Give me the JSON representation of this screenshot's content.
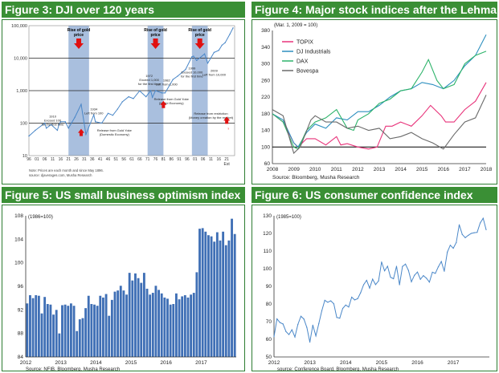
{
  "colors": {
    "header_bg": "#3a8f35",
    "header_text": "#ffffff",
    "line_blue": "#4a87c8",
    "shade": "#a9bfde",
    "arrow_red": "#e01010"
  },
  "panels": {
    "fig3": {
      "title": "Figure 3: DJI over 120 years"
    },
    "fig4": {
      "title": "Figure 4: Major stock indices after the Lehman shock"
    },
    "fig5": {
      "title": "Figure 5: US small business optimism index"
    },
    "fig6": {
      "title": "Figure 6: US consumer confidence index"
    }
  },
  "chart_data": [
    {
      "id": "fig3",
      "type": "line",
      "title": "Figure 3: DJI over 120 years",
      "y_scale": "log",
      "ylim": [
        10,
        100000
      ],
      "y_ticks": [
        "10",
        "100",
        "1,000",
        "10,000",
        "100,000"
      ],
      "x_ticks": [
        "96",
        "01",
        "06",
        "11",
        "16",
        "21",
        "26",
        "31",
        "36",
        "41",
        "46",
        "51",
        "56",
        "61",
        "66",
        "71",
        "76",
        "81",
        "86",
        "91",
        "96",
        "01",
        "06",
        "11",
        "16",
        "21"
      ],
      "x_tick_years": [
        1896,
        1901,
        1906,
        1911,
        1916,
        1921,
        1926,
        1931,
        1936,
        1941,
        1946,
        1951,
        1956,
        1961,
        1966,
        1971,
        1976,
        1981,
        1986,
        1991,
        1996,
        2001,
        2006,
        2011,
        2016,
        2021
      ],
      "x_end_label": "Est",
      "xlim": [
        1896,
        2026
      ],
      "series": [
        {
          "x": [
            1896,
            1900,
            1906,
            1907,
            1910,
            1914,
            1915,
            1916,
            1919,
            1921,
            1925,
            1929,
            1932,
            1937,
            1938,
            1942,
            1946,
            1949,
            1952,
            1955,
            1959,
            1962,
            1966,
            1970,
            1973,
            1974,
            1976,
            1980,
            1982,
            1985,
            1987,
            1990,
            1995,
            1999,
            2000,
            2002,
            2007,
            2009,
            2013,
            2016,
            2018,
            2020,
            2023,
            2025
          ],
          "y": [
            40,
            60,
            100,
            70,
            90,
            60,
            90,
            110,
            110,
            70,
            150,
            380,
            45,
            180,
            110,
            100,
            200,
            175,
            270,
            450,
            650,
            570,
            990,
            650,
            1000,
            620,
            1000,
            850,
            850,
            1500,
            2200,
            2800,
            4500,
            11000,
            11500,
            8500,
            13500,
            7000,
            15000,
            17500,
            25000,
            30000,
            55000,
            85000
          ]
        }
      ],
      "shaded_periods": [
        [
          1921,
          1934
        ],
        [
          1971,
          1981
        ],
        [
          1999,
          2009
        ]
      ],
      "shaded_label": "Rise of gold price",
      "annotations": [
        "1910\nExceed 100\nfor the first time",
        "1934\nLeft from 100",
        "1972\nExceed 1,000\nfor the first time",
        "1982\nLeft from 1,000",
        "1999\nExceed 10,000\nfor the first time",
        "2009\nLeft from 10,000",
        "Release from Gold Yoke\n(Domestic Economy)",
        "Release from Gold Yoke\n(World Economy)",
        "Release from restriction\n(Money creation by the market)",
        "?"
      ],
      "notes": [
        "Note: Prices are each month and since May 1896.",
        "source: djaverages.com, Musha Research"
      ]
    },
    {
      "id": "fig4",
      "type": "line",
      "title": "Figure 4: Major stock indices after the Lehman shock",
      "ylabel": "(Mar. 1, 2009 = 100)",
      "ylim": [
        60,
        380
      ],
      "y_ticks": [
        60,
        100,
        140,
        180,
        220,
        260,
        300,
        340,
        380
      ],
      "x_ticks": [
        "2008",
        "2009",
        "2010",
        "2011",
        "2012",
        "2013",
        "2014",
        "2015",
        "2016",
        "2017",
        "2018"
      ],
      "xlim": [
        2008,
        2018
      ],
      "reference_line": 100,
      "legend": [
        "TOPIX",
        "DJ Industrials",
        "DAX",
        "Bovespa"
      ],
      "series": [
        {
          "name": "TOPIX",
          "color": "#e8337a",
          "x": [
            2008,
            2008.5,
            2009,
            2009.2,
            2009.6,
            2010,
            2010.5,
            2011,
            2011.2,
            2011.5,
            2012,
            2012.5,
            2012.9,
            2013.3,
            2013.6,
            2014,
            2014.5,
            2015,
            2015.4,
            2015.9,
            2016.1,
            2016.5,
            2017,
            2017.5,
            2018
          ],
          "y": [
            180,
            160,
            110,
            100,
            120,
            120,
            105,
            125,
            105,
            108,
            100,
            95,
            100,
            150,
            150,
            160,
            150,
            175,
            200,
            175,
            160,
            160,
            190,
            210,
            255
          ]
        },
        {
          "name": "DJ Industrials",
          "color": "#2d8fbf",
          "x": [
            2008,
            2008.5,
            2009,
            2009.2,
            2009.6,
            2010,
            2010.5,
            2011,
            2011.5,
            2012,
            2012.5,
            2013,
            2013.5,
            2014,
            2014.5,
            2015,
            2015.5,
            2016,
            2016.5,
            2017,
            2017.5,
            2018
          ],
          "y": [
            180,
            165,
            110,
            100,
            135,
            155,
            145,
            170,
            165,
            185,
            185,
            200,
            220,
            235,
            240,
            255,
            250,
            240,
            260,
            295,
            320,
            370
          ]
        },
        {
          "name": "DAX",
          "color": "#2db36a",
          "x": [
            2008,
            2008.5,
            2009,
            2009.2,
            2009.6,
            2010,
            2010.5,
            2011,
            2011.5,
            2011.8,
            2012,
            2012.5,
            2013,
            2013.5,
            2014,
            2014.5,
            2015,
            2015.3,
            2015.7,
            2016,
            2016.5,
            2017,
            2017.5,
            2018
          ],
          "y": [
            180,
            160,
            100,
            95,
            140,
            160,
            170,
            190,
            145,
            140,
            165,
            180,
            205,
            215,
            235,
            240,
            280,
            310,
            260,
            240,
            250,
            300,
            320,
            330
          ]
        },
        {
          "name": "Bovespa",
          "color": "#6a6a6a",
          "x": [
            2008,
            2008.5,
            2009,
            2009.3,
            2009.8,
            2010,
            2010.5,
            2011,
            2011.5,
            2012,
            2012.5,
            2013,
            2013.5,
            2014,
            2014.5,
            2015,
            2015.5,
            2016,
            2016.5,
            2017,
            2017.5,
            2018
          ],
          "y": [
            190,
            175,
            85,
            100,
            165,
            175,
            160,
            160,
            145,
            150,
            140,
            145,
            120,
            125,
            135,
            120,
            110,
            95,
            130,
            160,
            170,
            225
          ]
        }
      ],
      "source": "Source: Bloomberg, Musha Research"
    },
    {
      "id": "fig5",
      "type": "bar",
      "title": "Figure 5: US small business optimism index",
      "ylabel": "(1986=100)",
      "ylim": [
        84,
        108
      ],
      "y_ticks": [
        84,
        88,
        92,
        96,
        100,
        104,
        108
      ],
      "x_ticks": [
        "2012",
        "2013",
        "2014",
        "2015",
        "2016",
        "2017"
      ],
      "values": [
        93.1,
        94.5,
        94.0,
        94.5,
        94.4,
        91.4,
        94.2,
        93.0,
        92.9,
        91.2,
        92.0,
        88.0,
        92.8,
        92.9,
        92.7,
        93.1,
        92.7,
        88.4,
        90.4,
        90.6,
        92.3,
        94.4,
        93.0,
        92.9,
        92.7,
        94.4,
        94.1,
        94.7,
        91.0,
        93.7,
        95.1,
        95.3,
        96.1,
        95.3,
        94.6,
        98.3,
        97.0,
        98.2,
        97.4,
        96.6,
        98.3,
        95.6,
        94.6,
        94.9,
        96.1,
        95.4,
        94.8,
        94.1,
        93.9,
        92.9,
        93.0,
        94.8,
        93.8,
        94.3,
        94.5,
        94.1,
        94.6,
        94.9,
        98.4,
        105.8,
        105.9,
        105.3,
        104.7,
        104.5,
        103.6,
        105.2,
        103.8,
        105.3,
        103.0,
        103.8,
        107.5,
        104.9
      ]
    },
    {
      "id": "fig6",
      "type": "line",
      "title": "Figure 6: US consumer confidence index",
      "ylabel": "(1985=100)",
      "ylim": [
        50,
        130
      ],
      "y_ticks": [
        50,
        60,
        70,
        80,
        90,
        100,
        110,
        120,
        130
      ],
      "x_ticks": [
        "2012",
        "2013",
        "2014",
        "2015",
        "2016",
        "2017"
      ],
      "values": [
        61.5,
        71.6,
        69.5,
        68.7,
        64.4,
        62.7,
        65.4,
        61.3,
        68.4,
        73.1,
        71.5,
        66.7,
        58.4,
        68.0,
        61.9,
        69.0,
        76.2,
        82.1,
        81.0,
        81.8,
        80.2,
        72.4,
        72.0,
        77.5,
        79.4,
        78.3,
        83.9,
        82.3,
        83.0,
        86.4,
        90.9,
        93.4,
        89.0,
        94.1,
        91.0,
        93.1,
        103.8,
        98.8,
        101.4,
        95.2,
        94.3,
        101.4,
        90.9,
        101.3,
        102.6,
        99.1,
        92.6,
        96.3,
        98.1,
        94.0,
        96.1,
        94.7,
        92.4,
        98.0,
        97.4,
        101.1,
        104.1,
        98.6,
        109.4,
        113.3,
        111.6,
        114.8,
        124.9,
        119.4,
        117.6,
        118.9,
        120.0,
        120.4,
        120.6,
        125.9,
        128.6,
        122.1
      ]
    }
  ],
  "footers": {
    "fig5_source": "Source: NFIB, Bloomberg, Musha Research",
    "fig6_source": "source: Conference Board, Bloomberg, Musha Research"
  }
}
